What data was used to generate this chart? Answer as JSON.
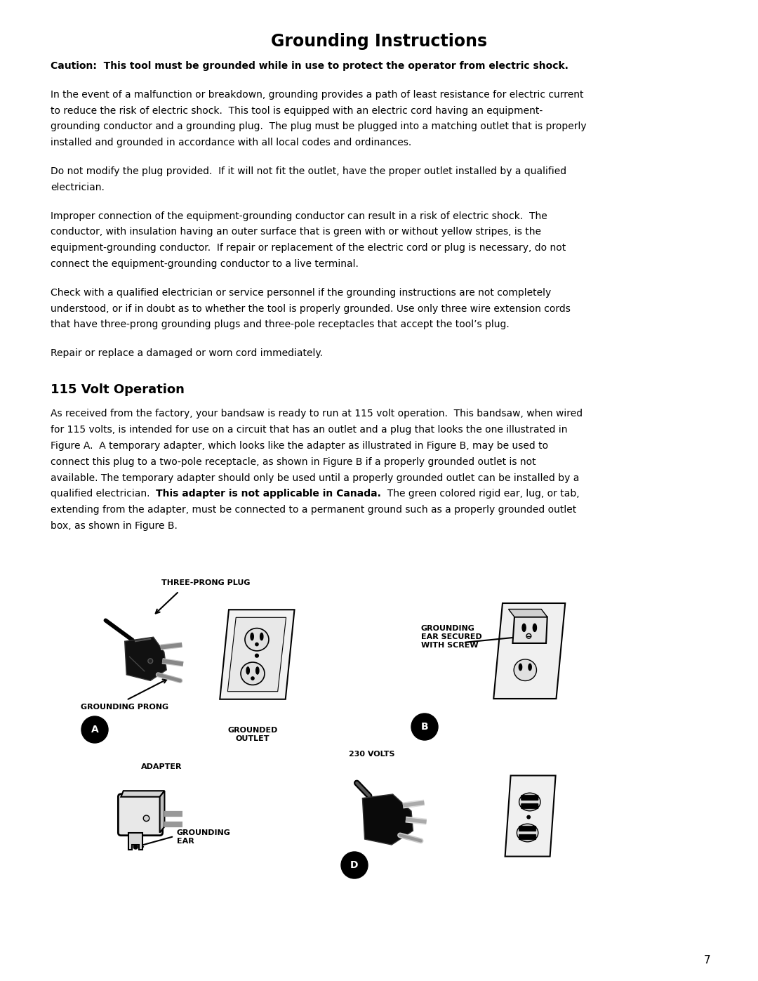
{
  "title": "Grounding Instructions",
  "title_fontsize": 17,
  "background_color": "#ffffff",
  "text_color": "#000000",
  "page_number": "7",
  "caution_text": "Caution:  This tool must be grounded while in use to protect the operator from electric shock.",
  "paragraph1_lines": [
    "In the event of a malfunction or breakdown, grounding provides a path of least resistance for electric current",
    "to reduce the risk of electric shock.  This tool is equipped with an electric cord having an equipment-",
    "grounding conductor and a grounding plug.  The plug must be plugged into a matching outlet that is properly",
    "installed and grounded in accordance with all local codes and ordinances."
  ],
  "paragraph2_lines": [
    "Do not modify the plug provided.  If it will not fit the outlet, have the proper outlet installed by a qualified",
    "electrician."
  ],
  "paragraph3_lines": [
    "Improper connection of the equipment-grounding conductor can result in a risk of electric shock.  The",
    "conductor, with insulation having an outer surface that is green with or without yellow stripes, is the",
    "equipment-grounding conductor.  If repair or replacement of the electric cord or plug is necessary, do not",
    "connect the equipment-grounding conductor to a live terminal."
  ],
  "paragraph4_lines": [
    "Check with a qualified electrician or service personnel if the grounding instructions are not completely",
    "understood, or if in doubt as to whether the tool is properly grounded. Use only three wire extension cords",
    "that have three-prong grounding plugs and three-pole receptacles that accept the tool’s plug."
  ],
  "paragraph5": "Repair or replace a damaged or worn cord immediately.",
  "section_title": "115 Volt Operation",
  "section_para_lines": [
    "As received from the factory, your bandsaw is ready to run at 115 volt operation.  This bandsaw, when wired",
    "for 115 volts, is intended for use on a circuit that has an outlet and a plug that looks the one illustrated in",
    "Figure A.  A temporary adapter, which looks like the adapter as illustrated in Figure B, may be used to",
    "connect this plug to a two-pole receptacle, as shown in Figure B if a properly grounded outlet is not",
    "available. The temporary adapter should only be used until a properly grounded outlet can be installed by a",
    "qualified electrician.  __BOLD__This adapter is not applicable in Canada.__ENDBOLD__  The green colored rigid ear, lug, or tab,",
    "extending from the adapter, must be connected to a permanent ground such as a properly grounded outlet",
    "box, as shown in Figure B."
  ]
}
